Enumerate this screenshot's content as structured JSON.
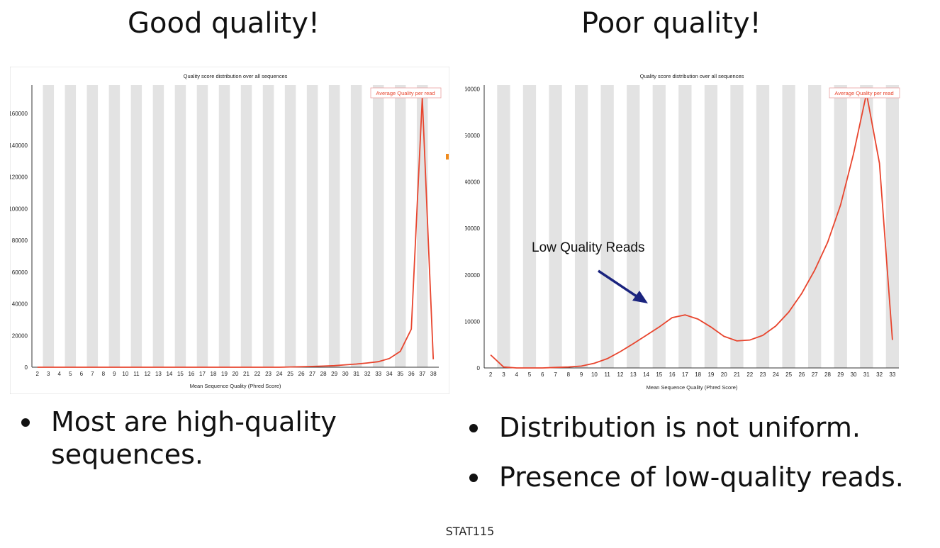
{
  "slide": {
    "left_heading": "Good quality!",
    "right_heading": "Poor quality!",
    "left_bullets": [
      "Most are high-quality sequences."
    ],
    "right_bullets": [
      "Distribution is not uniform.",
      "Presence of low-quality reads."
    ],
    "footer": "STAT115"
  },
  "colors": {
    "line": "#e8452e",
    "band": "#e3e3e3",
    "arrow": "#1a237e",
    "legend_text": "#e8452e"
  },
  "chart_data": [
    {
      "type": "line",
      "title": "Quality score distribution over all sequences",
      "xlabel": "Mean Sequence Quality (Phred Score)",
      "ylabel": "",
      "legend": "Average Quality per read",
      "legend_position": "top-right",
      "grid": "alternating vertical bands",
      "x": [
        2,
        3,
        4,
        5,
        6,
        7,
        8,
        9,
        10,
        11,
        12,
        13,
        14,
        15,
        16,
        17,
        18,
        19,
        20,
        21,
        22,
        23,
        24,
        25,
        26,
        27,
        28,
        29,
        30,
        31,
        32,
        33,
        34,
        35,
        36,
        37,
        38
      ],
      "y": [
        0,
        0,
        0,
        0,
        0,
        0,
        0,
        0,
        0,
        0,
        0,
        0,
        0,
        0,
        0,
        0,
        0,
        0,
        0,
        0,
        0,
        0,
        0,
        200,
        300,
        500,
        700,
        1000,
        1500,
        2000,
        2700,
        3500,
        5500,
        10000,
        24000,
        170000,
        5000
      ],
      "yticks": [
        0,
        20000,
        40000,
        60000,
        80000,
        100000,
        120000,
        140000,
        160000
      ],
      "ylim": [
        0,
        178000
      ]
    },
    {
      "type": "line",
      "title": "Quality score distribution over all sequences",
      "xlabel": "Mean Sequence Quality (Phred Score)",
      "ylabel": "",
      "legend": "Average Quality per read",
      "legend_position": "top-right",
      "grid": "alternating vertical bands",
      "annotation": "Low Quality Reads",
      "x": [
        2,
        3,
        4,
        5,
        6,
        7,
        8,
        9,
        10,
        11,
        12,
        13,
        14,
        15,
        16,
        17,
        18,
        19,
        20,
        21,
        22,
        23,
        24,
        25,
        26,
        27,
        28,
        29,
        30,
        31,
        32,
        33
      ],
      "y": [
        2800,
        200,
        0,
        0,
        0,
        100,
        200,
        400,
        1000,
        2000,
        3500,
        5200,
        7000,
        8800,
        10800,
        11400,
        10500,
        8800,
        6800,
        5800,
        6000,
        7000,
        9000,
        12000,
        16000,
        21000,
        27000,
        35000,
        46000,
        59000,
        44000,
        6000
      ],
      "yticks": [
        0,
        10000,
        20000,
        30000,
        40000,
        50000,
        60000
      ],
      "ylim": [
        0,
        60800
      ]
    }
  ]
}
